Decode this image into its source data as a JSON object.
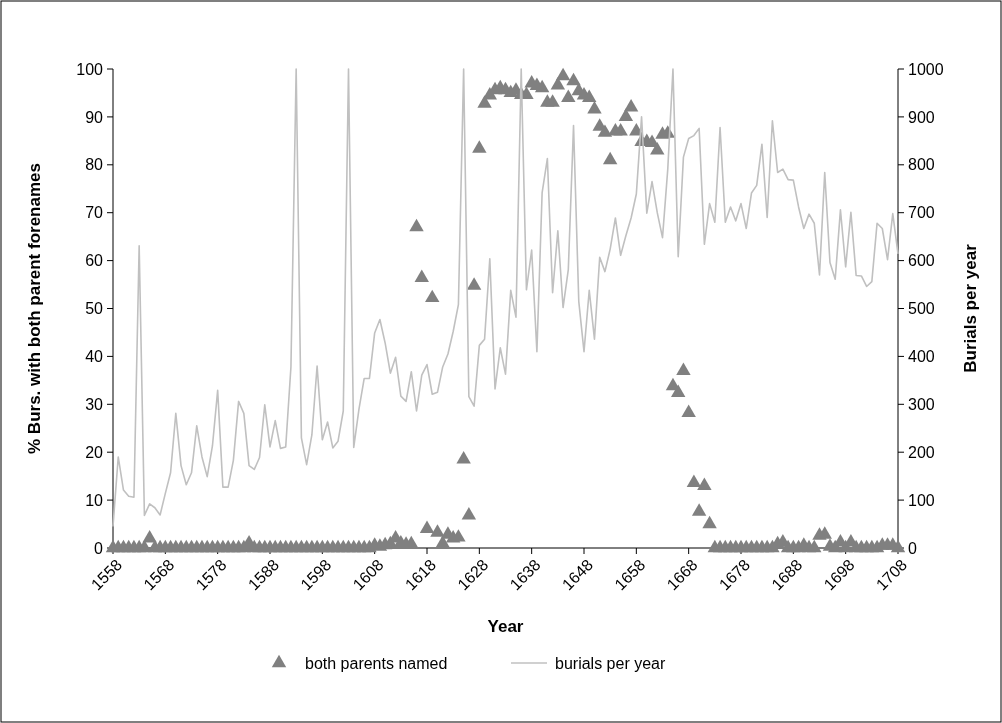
{
  "chart_data": {
    "type": "scatter",
    "xlabel": "Year",
    "ylabel": "% Burs. with both parent forenames",
    "y2label": "Burials per year",
    "x": [
      1558,
      1559,
      1560,
      1561,
      1562,
      1563,
      1564,
      1565,
      1566,
      1567,
      1568,
      1569,
      1570,
      1571,
      1572,
      1573,
      1574,
      1575,
      1576,
      1577,
      1578,
      1579,
      1580,
      1581,
      1582,
      1583,
      1584,
      1585,
      1586,
      1587,
      1588,
      1589,
      1590,
      1591,
      1592,
      1593,
      1594,
      1595,
      1596,
      1597,
      1598,
      1599,
      1600,
      1601,
      1602,
      1603,
      1604,
      1605,
      1606,
      1607,
      1608,
      1609,
      1610,
      1611,
      1612,
      1613,
      1614,
      1615,
      1616,
      1617,
      1618,
      1619,
      1620,
      1621,
      1622,
      1623,
      1624,
      1625,
      1626,
      1627,
      1628,
      1629,
      1630,
      1631,
      1632,
      1633,
      1634,
      1635,
      1636,
      1637,
      1638,
      1639,
      1640,
      1641,
      1642,
      1643,
      1644,
      1645,
      1646,
      1647,
      1648,
      1649,
      1650,
      1651,
      1652,
      1653,
      1654,
      1655,
      1656,
      1657,
      1658,
      1659,
      1660,
      1661,
      1662,
      1663,
      1664,
      1665,
      1666,
      1667,
      1668,
      1669,
      1670,
      1671,
      1672,
      1673,
      1674,
      1675,
      1676,
      1677,
      1678,
      1679,
      1680,
      1681,
      1682,
      1683,
      1684,
      1685,
      1686,
      1687,
      1688,
      1689,
      1690,
      1691,
      1692,
      1693,
      1694,
      1695,
      1696,
      1697,
      1698,
      1699,
      1700,
      1701,
      1702,
      1703,
      1704,
      1705,
      1706,
      1707,
      1708
    ],
    "series": [
      {
        "name": "both parents named",
        "marker": "triangle",
        "color": "#808080",
        "values": [
          0,
          0,
          0,
          0,
          0,
          0,
          0,
          2,
          0,
          0,
          0,
          0,
          0,
          0,
          0,
          0,
          0,
          0,
          0,
          0,
          0,
          0,
          0,
          0,
          0,
          0,
          1,
          0,
          0,
          0,
          0,
          0,
          0,
          0,
          0,
          0,
          0,
          0,
          0,
          0,
          0,
          0,
          0,
          0,
          0,
          0,
          0,
          0,
          0,
          0,
          0.5,
          0.3,
          0.6,
          0.8,
          2,
          1,
          0.7,
          0.8,
          67,
          56.4,
          4,
          52.2,
          3.2,
          0.9,
          2.8,
          2,
          2.2,
          18.5,
          6.8,
          54.8,
          83.4,
          92.8,
          94.5,
          95.6,
          96,
          95.6,
          95,
          95.5,
          94.6,
          94.6,
          97,
          96.5,
          96,
          93,
          93,
          96.6,
          98.5,
          94,
          97.5,
          95.4,
          94.5,
          94,
          91.6,
          88,
          86.7,
          81,
          87,
          87,
          90,
          92,
          87,
          84.8,
          84.8,
          84.6,
          83,
          86.3,
          86.5,
          33.8,
          32.4,
          37,
          28.2,
          13.6,
          7.6,
          13,
          5,
          0,
          0,
          0,
          0,
          0,
          0,
          0,
          0,
          0,
          0,
          0,
          0,
          0.8,
          1.2,
          0,
          0,
          0,
          0.5,
          0,
          0,
          2.6,
          2.8,
          0.3,
          0,
          1.2,
          0,
          1.2,
          0,
          0,
          0,
          0,
          0,
          0.5,
          0.5,
          0.5,
          0
        ]
      },
      {
        "name": "burials per year",
        "type": "line",
        "marker": "none",
        "line_style": "solid",
        "axis": "y2",
        "color": "#c0c0c0",
        "values": [
          45,
          190,
          121,
          108,
          106,
          631,
          68,
          92,
          84,
          69,
          114,
          157,
          281,
          172,
          132,
          157,
          255,
          190,
          149,
          213,
          329,
          127,
          127,
          183,
          306,
          281,
          172,
          164,
          189,
          299,
          211,
          266,
          208,
          211,
          378,
          1000,
          230,
          174,
          236,
          380,
          226,
          263,
          209,
          223,
          286,
          1000,
          210,
          290,
          354,
          354,
          449,
          477,
          428,
          365,
          398,
          317,
          306,
          368,
          286,
          361,
          383,
          321,
          325,
          378,
          405,
          452,
          508,
          1000,
          316,
          296,
          423,
          436,
          604,
          332,
          418,
          363,
          538,
          482,
          1000,
          539,
          622,
          410,
          742,
          813,
          533,
          662,
          502,
          581,
          882,
          515,
          410,
          538,
          436,
          607,
          577,
          624,
          689,
          611,
          652,
          689,
          739,
          900,
          699,
          765,
          700,
          648,
          790,
          1000,
          608,
          816,
          855,
          861,
          876,
          634,
          719,
          680,
          878,
          680,
          712,
          683,
          719,
          667,
          741,
          757,
          843,
          690,
          892,
          784,
          791,
          769,
          768,
          712,
          667,
          697,
          678,
          570,
          784,
          596,
          561,
          706,
          587,
          701,
          569,
          568,
          546,
          556,
          678,
          667,
          602,
          698,
          614
        ]
      }
    ],
    "xlim": [
      1558,
      1708
    ],
    "xticks": [
      1558,
      1568,
      1578,
      1588,
      1598,
      1608,
      1618,
      1628,
      1638,
      1648,
      1658,
      1668,
      1678,
      1688,
      1698,
      1708
    ],
    "ylim": [
      0,
      100
    ],
    "yticks": [
      0,
      10,
      20,
      30,
      40,
      50,
      60,
      70,
      80,
      90,
      100
    ],
    "y2lim": [
      0,
      1000
    ],
    "y2ticks": [
      0,
      100,
      200,
      300,
      400,
      500,
      600,
      700,
      800,
      900,
      1000
    ],
    "grid": false,
    "legend": "bottom"
  }
}
